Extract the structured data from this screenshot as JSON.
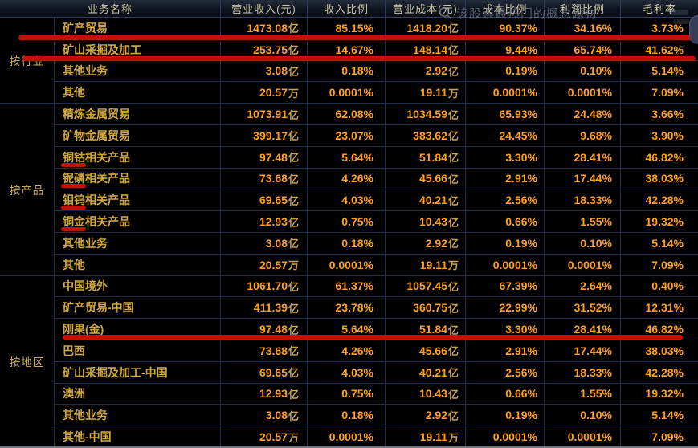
{
  "header": {
    "columns": [
      "业务名称",
      "营业收入(元)",
      "收入比例",
      "营业成本(元)",
      "成本比例",
      "利润比例",
      "毛利率"
    ]
  },
  "watermark": {
    "text": "该股票最热门的概念题材",
    "icon": "search-icon"
  },
  "table": {
    "sections": [
      {
        "group": "按行业",
        "rows": [
          [
            "矿产贸易",
            "1473.08亿",
            "85.15%",
            "1418.20亿",
            "90.37%",
            "34.16%",
            "3.73%"
          ],
          [
            "矿山采掘及加工",
            "253.75亿",
            "14.67%",
            "148.14亿",
            "9.44%",
            "65.74%",
            "41.62%"
          ],
          [
            "其他业务",
            "3.08亿",
            "0.18%",
            "2.92亿",
            "0.19%",
            "0.10%",
            "5.14%"
          ],
          [
            "其他",
            "20.57万",
            "0.0001%",
            "19.11万",
            "0.0001%",
            "0.0001%",
            "7.09%"
          ]
        ]
      },
      {
        "group": "按产品",
        "rows": [
          [
            "精炼金属贸易",
            "1073.91亿",
            "62.08%",
            "1034.59亿",
            "65.93%",
            "24.48%",
            "3.66%"
          ],
          [
            "矿物金属贸易",
            "399.17亿",
            "23.07%",
            "383.62亿",
            "24.45%",
            "9.68%",
            "3.90%"
          ],
          [
            "铜钴相关产品",
            "97.48亿",
            "5.64%",
            "51.84亿",
            "3.30%",
            "28.41%",
            "46.82%"
          ],
          [
            "铌磷相关产品",
            "73.68亿",
            "4.26%",
            "45.66亿",
            "2.91%",
            "17.44%",
            "38.03%"
          ],
          [
            "钼钨相关产品",
            "69.65亿",
            "4.03%",
            "40.21亿",
            "2.56%",
            "18.33%",
            "42.28%"
          ],
          [
            "铜金相关产品",
            "12.93亿",
            "0.75%",
            "10.43亿",
            "0.66%",
            "1.55%",
            "19.32%"
          ],
          [
            "其他业务",
            "3.08亿",
            "0.18%",
            "2.92亿",
            "0.19%",
            "0.10%",
            "5.14%"
          ],
          [
            "其他",
            "20.57万",
            "0.0001%",
            "19.11万",
            "0.0001%",
            "0.0001%",
            "7.09%"
          ]
        ]
      },
      {
        "group": "按地区",
        "rows": [
          [
            "中国境外",
            "1061.70亿",
            "61.37%",
            "1057.45亿",
            "67.39%",
            "2.64%",
            "0.40%"
          ],
          [
            "矿产贸易-中国",
            "411.39亿",
            "23.78%",
            "360.75亿",
            "22.99%",
            "31.52%",
            "12.31%"
          ],
          [
            "刚果(金)",
            "97.48亿",
            "5.64%",
            "51.84亿",
            "3.30%",
            "28.41%",
            "46.82%"
          ],
          [
            "巴西",
            "73.68亿",
            "4.26%",
            "45.66亿",
            "2.91%",
            "17.44%",
            "38.03%"
          ],
          [
            "矿山采掘及加工-中国",
            "69.65亿",
            "4.03%",
            "40.21亿",
            "2.56%",
            "18.33%",
            "42.28%"
          ],
          [
            "澳洲",
            "12.93亿",
            "0.75%",
            "10.43亿",
            "0.66%",
            "1.55%",
            "19.32%"
          ],
          [
            "其他业务",
            "3.08亿",
            "0.18%",
            "2.92亿",
            "0.19%",
            "0.10%",
            "5.14%"
          ],
          [
            "其他-中国",
            "20.57万",
            "0.0001%",
            "19.11万",
            "0.0001%",
            "0.0001%",
            "7.09%"
          ]
        ]
      }
    ]
  },
  "annotations": {
    "color": "#c41104",
    "full_row_underlines": [
      "矿产贸易",
      "矿山采掘及加工",
      "刚果(金)"
    ],
    "term_underlines": [
      "铜钴",
      "铌磷",
      "钼钨",
      "铜金"
    ]
  },
  "colors": {
    "background": "#000000",
    "number": "#ffa01e",
    "name_text": "#d2a93f",
    "border": "#1b2c50",
    "annotation_red": "#c41104"
  }
}
